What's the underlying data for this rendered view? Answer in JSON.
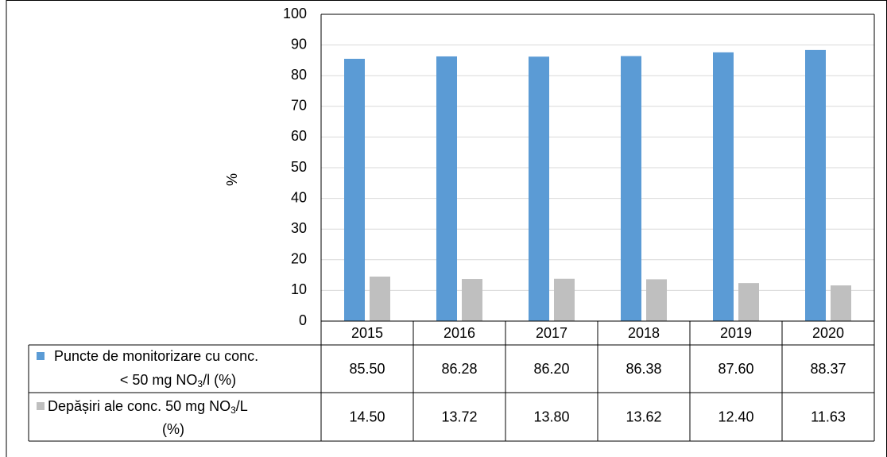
{
  "chart_data": {
    "type": "bar",
    "ylabel": "%",
    "ylim": [
      0,
      100
    ],
    "yticks": [
      0,
      10,
      20,
      30,
      40,
      50,
      60,
      70,
      80,
      90,
      100
    ],
    "grid": true,
    "legend": "data-table",
    "categories": [
      "2015",
      "2016",
      "2017",
      "2018",
      "2019",
      "2020"
    ],
    "series": [
      {
        "name": "Puncte de  monitorizare cu conc. < 50 mg NO3/l (%)",
        "label_line1": "Puncte de  monitorizare cu conc.",
        "label_line2_pre": "< 50 mg NO",
        "label_line2_sub": "3",
        "label_line2_post": "/l (%)",
        "color": "#5b9bd5",
        "values": [
          85.5,
          86.28,
          86.2,
          86.38,
          87.6,
          88.37
        ],
        "value_labels": [
          "85.50",
          "86.28",
          "86.20",
          "86.38",
          "87.60",
          "88.37"
        ]
      },
      {
        "name": "Depășiri ale conc. 50 mg NO3/L (%)",
        "label_line1_pre": "Depășiri ale conc. 50 mg NO",
        "label_line1_sub": "3",
        "label_line1_post": "/L",
        "label_line2": "(%)",
        "color": "#bfbfbf",
        "values": [
          14.5,
          13.72,
          13.8,
          13.62,
          12.4,
          11.63
        ],
        "value_labels": [
          "14.50",
          "13.72",
          "13.80",
          "13.62",
          "12.40",
          "11.63"
        ]
      }
    ]
  }
}
